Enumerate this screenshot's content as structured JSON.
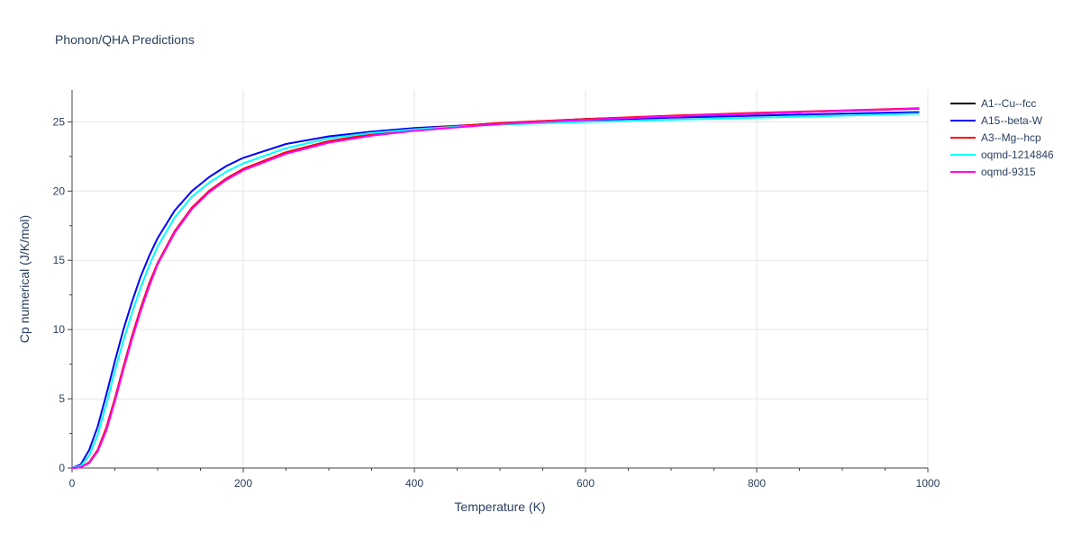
{
  "chart_data": {
    "type": "line",
    "title": "Phonon/QHA Predictions",
    "xlabel": "Temperature (K)",
    "ylabel": "Cp numerical (J/K/mol)",
    "xlim": [
      0,
      1000
    ],
    "ylim": [
      0,
      27.3
    ],
    "x_ticks": [
      0,
      200,
      400,
      600,
      800,
      1000
    ],
    "y_ticks": [
      0,
      5,
      10,
      15,
      20,
      25
    ],
    "x_tick_labels": [
      "0",
      "200",
      "400",
      "600",
      "800",
      "1000"
    ],
    "y_tick_labels": [
      "0",
      "5",
      "10",
      "15",
      "20",
      "25"
    ],
    "grid": true,
    "legend_position": "right",
    "x": [
      0,
      10,
      20,
      30,
      40,
      50,
      60,
      70,
      80,
      90,
      100,
      120,
      140,
      160,
      180,
      200,
      250,
      300,
      350,
      400,
      450,
      500,
      600,
      700,
      800,
      900,
      990
    ],
    "series": [
      {
        "name": "A1--Cu--fcc",
        "color": "#000000",
        "values": [
          0,
          0.05,
          0.4,
          1.3,
          2.9,
          5.0,
          7.3,
          9.5,
          11.5,
          13.3,
          14.8,
          17.1,
          18.8,
          20.0,
          20.9,
          21.6,
          22.8,
          23.6,
          24.1,
          24.4,
          24.7,
          24.9,
          25.2,
          25.4,
          25.6,
          25.8,
          25.95
        ]
      },
      {
        "name": "A15--beta-W",
        "color": "#0000ff",
        "values": [
          0,
          0.25,
          1.3,
          3.0,
          5.3,
          7.7,
          10.0,
          12.0,
          13.8,
          15.3,
          16.6,
          18.6,
          20.0,
          21.0,
          21.8,
          22.4,
          23.4,
          23.95,
          24.3,
          24.55,
          24.72,
          24.85,
          25.1,
          25.3,
          25.45,
          25.6,
          25.7
        ]
      },
      {
        "name": "A3--Mg--hcp",
        "color": "#ff0000",
        "values": [
          0,
          0.05,
          0.4,
          1.3,
          2.9,
          5.0,
          7.3,
          9.5,
          11.5,
          13.3,
          14.8,
          17.1,
          18.8,
          20.0,
          20.9,
          21.6,
          22.8,
          23.6,
          24.1,
          24.45,
          24.7,
          24.92,
          25.2,
          25.45,
          25.65,
          25.82,
          25.98
        ]
      },
      {
        "name": "oqmd-1214846",
        "color": "#00ffff",
        "values": [
          0,
          0.15,
          0.9,
          2.4,
          4.6,
          7.0,
          9.2,
          11.2,
          13.0,
          14.6,
          16.0,
          18.1,
          19.6,
          20.6,
          21.4,
          22.0,
          23.1,
          23.8,
          24.2,
          24.45,
          24.65,
          24.8,
          25.0,
          25.15,
          25.3,
          25.45,
          25.6
        ]
      },
      {
        "name": "oqmd-9315",
        "color": "#ff00ff",
        "values": [
          0,
          0.05,
          0.35,
          1.2,
          2.7,
          4.8,
          7.1,
          9.3,
          11.3,
          13.1,
          14.7,
          17.0,
          18.7,
          19.9,
          20.8,
          21.5,
          22.7,
          23.5,
          24.0,
          24.35,
          24.6,
          24.85,
          25.15,
          25.4,
          25.6,
          25.8,
          25.95
        ]
      }
    ]
  }
}
